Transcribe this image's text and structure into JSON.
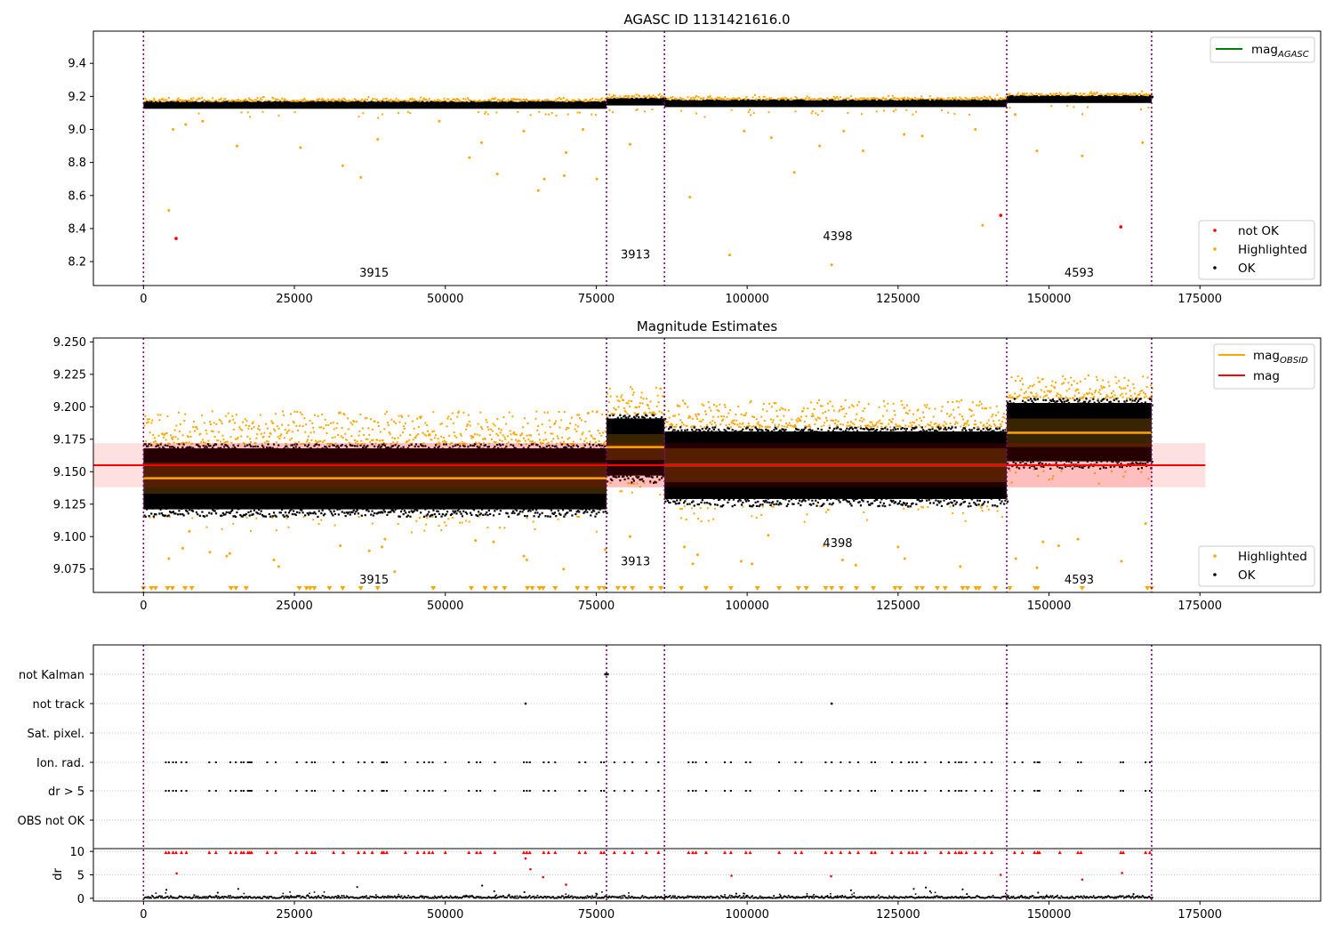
{
  "chart_data": [
    {
      "type": "scatter",
      "title": "AGASC ID 1131421616.0",
      "xlim": [
        -8300,
        195000
      ],
      "ylim": [
        8.055,
        9.595
      ],
      "xticks": [
        0,
        25000,
        50000,
        75000,
        100000,
        125000,
        150000,
        175000
      ],
      "xtick_labels": [
        "0",
        "25000",
        "50000",
        "75000",
        "100000",
        "125000",
        "150000",
        "175000"
      ],
      "yticks": [
        8.2,
        8.4,
        8.6,
        8.8,
        9.0,
        9.2,
        9.4
      ],
      "ytick_labels": [
        "8.2",
        "8.4",
        "8.6",
        "8.8",
        "9.0",
        "9.2",
        "9.4"
      ],
      "obs_boundaries": [
        0,
        76700,
        86300,
        143000,
        167000
      ],
      "obs_labels": [
        {
          "text": "3915",
          "x": 38200,
          "y": 8.11
        },
        {
          "text": "3913",
          "x": 81500,
          "y": 8.22
        },
        {
          "text": "4398",
          "x": 115000,
          "y": 8.33
        },
        {
          "text": "4593",
          "x": 155000,
          "y": 8.11
        }
      ],
      "segments": [
        {
          "x0": 0,
          "x1": 76700,
          "center": 9.145,
          "width": 0.02
        },
        {
          "x0": 76700,
          "x1": 86300,
          "center": 9.165,
          "width": 0.02
        },
        {
          "x0": 86300,
          "x1": 143000,
          "center": 9.155,
          "width": 0.02
        },
        {
          "x0": 143000,
          "x1": 167000,
          "center": 9.18,
          "width": 0.02
        }
      ],
      "highlighted_points": [
        [
          4200,
          8.51
        ],
        [
          4900,
          9.0
        ],
        [
          7000,
          9.03
        ],
        [
          9800,
          9.05
        ],
        [
          15500,
          8.9
        ],
        [
          26000,
          8.89
        ],
        [
          33000,
          8.78
        ],
        [
          36000,
          8.71
        ],
        [
          38800,
          8.94
        ],
        [
          49000,
          9.05
        ],
        [
          54000,
          8.83
        ],
        [
          56000,
          8.92
        ],
        [
          58600,
          8.73
        ],
        [
          63000,
          8.99
        ],
        [
          65400,
          8.63
        ],
        [
          66400,
          8.7
        ],
        [
          69700,
          8.72
        ],
        [
          70000,
          8.86
        ],
        [
          72800,
          9.0
        ],
        [
          75100,
          8.7
        ],
        [
          80600,
          8.91
        ],
        [
          90500,
          8.59
        ],
        [
          97100,
          8.24
        ],
        [
          99500,
          8.99
        ],
        [
          104000,
          8.95
        ],
        [
          107800,
          8.74
        ],
        [
          112000,
          8.9
        ],
        [
          114000,
          8.18
        ],
        [
          116000,
          8.99
        ],
        [
          119200,
          8.87
        ],
        [
          126000,
          8.97
        ],
        [
          129000,
          8.96
        ],
        [
          137800,
          9.0
        ],
        [
          139000,
          8.42
        ],
        [
          144400,
          9.09
        ],
        [
          148000,
          8.87
        ],
        [
          155500,
          8.84
        ],
        [
          165500,
          8.92
        ]
      ],
      "not_ok_points": [
        [
          5400,
          8.34
        ],
        [
          142000,
          8.48
        ],
        [
          161900,
          8.41
        ]
      ],
      "legends": [
        {
          "position": "upper right",
          "entries": [
            {
              "marker": "line",
              "color": "#008000",
              "label": "mag",
              "sub": "AGASC"
            }
          ]
        },
        {
          "position": "lower right",
          "entries": [
            {
              "marker": "dot",
              "color": "#ff0000",
              "label": "not OK"
            },
            {
              "marker": "dot",
              "color": "#ffa500",
              "label": "Highlighted"
            },
            {
              "marker": "dot",
              "color": "#000000",
              "label": "OK"
            }
          ]
        }
      ]
    },
    {
      "type": "scatter",
      "title": "Magnitude Estimates",
      "xlim": [
        -8300,
        195000
      ],
      "ylim": [
        9.057,
        9.253
      ],
      "xticks": [
        0,
        25000,
        50000,
        75000,
        100000,
        125000,
        150000,
        175000
      ],
      "xtick_labels": [
        "0",
        "25000",
        "50000",
        "75000",
        "100000",
        "125000",
        "150000",
        "175000"
      ],
      "yticks": [
        9.075,
        9.1,
        9.125,
        9.15,
        9.175,
        9.2,
        9.225,
        9.25
      ],
      "ytick_labels": [
        "9.075",
        "9.100",
        "9.125",
        "9.150",
        "9.175",
        "9.200",
        "9.225",
        "9.250"
      ],
      "mag": 9.155,
      "mag_band": [
        9.138,
        9.172
      ],
      "mag_span": [
        -8300,
        175900
      ],
      "obs_mags": [
        {
          "x0": 0,
          "x1": 76700,
          "mag": 9.145,
          "std": 0.012,
          "ok_lo": 9.116,
          "ok_hi": 9.172,
          "hl_lo": 9.172,
          "hl_hi": 9.19
        },
        {
          "x0": 76700,
          "x1": 86300,
          "mag": 9.169,
          "std": 0.01,
          "ok_lo": 9.142,
          "ok_hi": 9.195,
          "hl_lo": 9.195,
          "hl_hi": 9.21
        },
        {
          "x0": 86300,
          "x1": 143000,
          "mag": 9.155,
          "std": 0.013,
          "ok_lo": 9.124,
          "ok_hi": 9.185,
          "hl_lo": 9.185,
          "hl_hi": 9.2
        },
        {
          "x0": 143000,
          "x1": 167000,
          "mag": 9.18,
          "std": 0.011,
          "ok_lo": 9.153,
          "ok_hi": 9.207,
          "hl_lo": 9.207,
          "hl_hi": 9.22
        }
      ],
      "obs_boundaries": [
        0,
        76700,
        86300,
        143000,
        167000
      ],
      "obs_labels": [
        {
          "text": "3915",
          "x": 38200,
          "y": 9.064
        },
        {
          "text": "3913",
          "x": 81500,
          "y": 9.078
        },
        {
          "text": "4398",
          "x": 115000,
          "y": 9.092
        },
        {
          "text": "4593",
          "x": 155000,
          "y": 9.064
        }
      ],
      "highlighted_points": [
        [
          4200,
          9.083
        ],
        [
          6500,
          9.091
        ],
        [
          7600,
          9.104
        ],
        [
          11000,
          9.088
        ],
        [
          13800,
          9.085
        ],
        [
          14300,
          9.087
        ],
        [
          21600,
          9.082
        ],
        [
          22400,
          9.077
        ],
        [
          32600,
          9.093
        ],
        [
          37400,
          9.089
        ],
        [
          39500,
          9.092
        ],
        [
          40000,
          9.098
        ],
        [
          41600,
          9.073
        ],
        [
          55000,
          9.097
        ],
        [
          58000,
          9.096
        ],
        [
          63000,
          9.085
        ],
        [
          63500,
          9.082
        ],
        [
          69600,
          9.075
        ],
        [
          76500,
          9.09
        ],
        [
          80600,
          9.1
        ],
        [
          89600,
          9.092
        ],
        [
          91000,
          9.079
        ],
        [
          91800,
          9.086
        ],
        [
          99000,
          9.081
        ],
        [
          100800,
          9.079
        ],
        [
          103500,
          9.101
        ],
        [
          112700,
          9.093
        ],
        [
          115800,
          9.082
        ],
        [
          118000,
          9.078
        ],
        [
          125000,
          9.092
        ],
        [
          126100,
          9.083
        ],
        [
          135300,
          9.077
        ],
        [
          144500,
          9.083
        ],
        [
          148000,
          9.076
        ],
        [
          149000,
          9.096
        ],
        [
          151600,
          9.093
        ],
        [
          154800,
          9.098
        ],
        [
          162000,
          9.081
        ],
        [
          166000,
          9.11
        ]
      ],
      "lower_limit_markers": [
        0,
        1300,
        2000,
        4000,
        4800,
        6900,
        8000,
        14500,
        15300,
        17000,
        25800,
        27000,
        27600,
        28300,
        30800,
        33000,
        36000,
        38800,
        48000,
        54300,
        56600,
        58300,
        59800,
        63600,
        64400,
        65600,
        66200,
        68200,
        71900,
        73400,
        75500,
        76300,
        78600,
        79700,
        81000,
        84100,
        85700,
        89100,
        93200,
        97300,
        101700,
        105300,
        108500,
        109800,
        113000,
        114000,
        115600,
        118100,
        120900,
        124500,
        125300,
        128100,
        129000,
        131500,
        132800,
        135700,
        136500,
        137900,
        138400,
        141100,
        143500,
        147700,
        148100,
        155500,
        166300,
        167000
      ],
      "legends": [
        {
          "position": "upper right",
          "entries": [
            {
              "marker": "line",
              "color": "#ffa500",
              "label": "mag",
              "sub": "OBSID"
            },
            {
              "marker": "line",
              "color": "#ff0000",
              "label": "mag"
            }
          ]
        },
        {
          "position": "lower right",
          "entries": [
            {
              "marker": "dot",
              "color": "#ffa500",
              "label": "Highlighted"
            },
            {
              "marker": "dot",
              "color": "#000000",
              "label": "OK"
            }
          ]
        }
      ]
    },
    {
      "type": "scatter",
      "title": "",
      "xlim": [
        -8300,
        195000
      ],
      "ylabel": "dr",
      "yticks_flags": [
        "not Kalman",
        "not track",
        "Sat. pixel.",
        "Ion. rad.",
        "dr > 5",
        "OBS not OK"
      ],
      "yticks_dr": [
        0,
        5,
        10
      ],
      "ytick_labels_dr": [
        "0",
        "5",
        "10"
      ],
      "ylim_dr": [
        -0.6,
        10.6
      ],
      "xticks": [
        0,
        25000,
        50000,
        75000,
        100000,
        125000,
        150000,
        175000
      ],
      "xtick_labels": [
        "0",
        "25000",
        "50000",
        "75000",
        "100000",
        "125000",
        "150000",
        "175000"
      ],
      "obs_boundaries": [
        0,
        76700,
        86300,
        143000,
        167000
      ],
      "not_kalman": [
        76500,
        76700,
        76900
      ],
      "not_track": [
        63300,
        114000,
        143000
      ],
      "ion_rad_times": [
        3700,
        4200,
        4900,
        5400,
        6300,
        7100,
        10900,
        12000,
        14400,
        15300,
        16200,
        16600,
        17300,
        17600,
        17900,
        20500,
        21900,
        25400,
        27000,
        27900,
        28400,
        31500,
        33100,
        35600,
        36600,
        37900,
        39500,
        39800,
        40300,
        43400,
        45400,
        46500,
        47300,
        47900,
        50000,
        53900,
        55200,
        55800,
        58200,
        63000,
        63500,
        64000,
        66300,
        67100,
        68200,
        72200,
        73200,
        75800,
        76300,
        78000,
        79700,
        81000,
        83300,
        85300,
        90300,
        91000,
        91500,
        93200,
        96300,
        97300,
        99800,
        100500,
        105300,
        108000,
        109000,
        113000,
        114000,
        115500,
        117000,
        118400,
        120600,
        121200,
        124000,
        125500,
        126800,
        127400,
        128100,
        129500,
        132100,
        133400,
        134500,
        135100,
        135500,
        136300,
        137800,
        139300,
        140500,
        144300,
        145600,
        147600,
        148100,
        148400,
        151800,
        154800,
        155300,
        161900,
        162300,
        166000,
        166700
      ],
      "dr_high": [
        [
          5500,
          5.3
        ],
        [
          63300,
          8.5
        ],
        [
          64100,
          6.2
        ],
        [
          66200,
          4.5
        ],
        [
          70000,
          2.9
        ],
        [
          142000,
          5.0
        ],
        [
          155500,
          4.0
        ],
        [
          162100,
          5.4
        ],
        [
          97400,
          4.8
        ],
        [
          113900,
          4.7
        ]
      ],
      "dr_mid": [
        [
          3800,
          1.8
        ],
        [
          12300,
          1.2
        ],
        [
          15700,
          2.0
        ],
        [
          35400,
          2.4
        ],
        [
          56100,
          2.7
        ],
        [
          58100,
          1.5
        ],
        [
          63100,
          1.3
        ],
        [
          75000,
          1.0
        ],
        [
          98200,
          1.0
        ],
        [
          117200,
          1.7
        ],
        [
          127600,
          2.0
        ],
        [
          129600,
          2.3
        ],
        [
          130300,
          1.5
        ],
        [
          135700,
          1.9
        ],
        [
          136400,
          0.9
        ],
        [
          148200,
          1.2
        ],
        [
          164000,
          0.9
        ]
      ]
    }
  ]
}
